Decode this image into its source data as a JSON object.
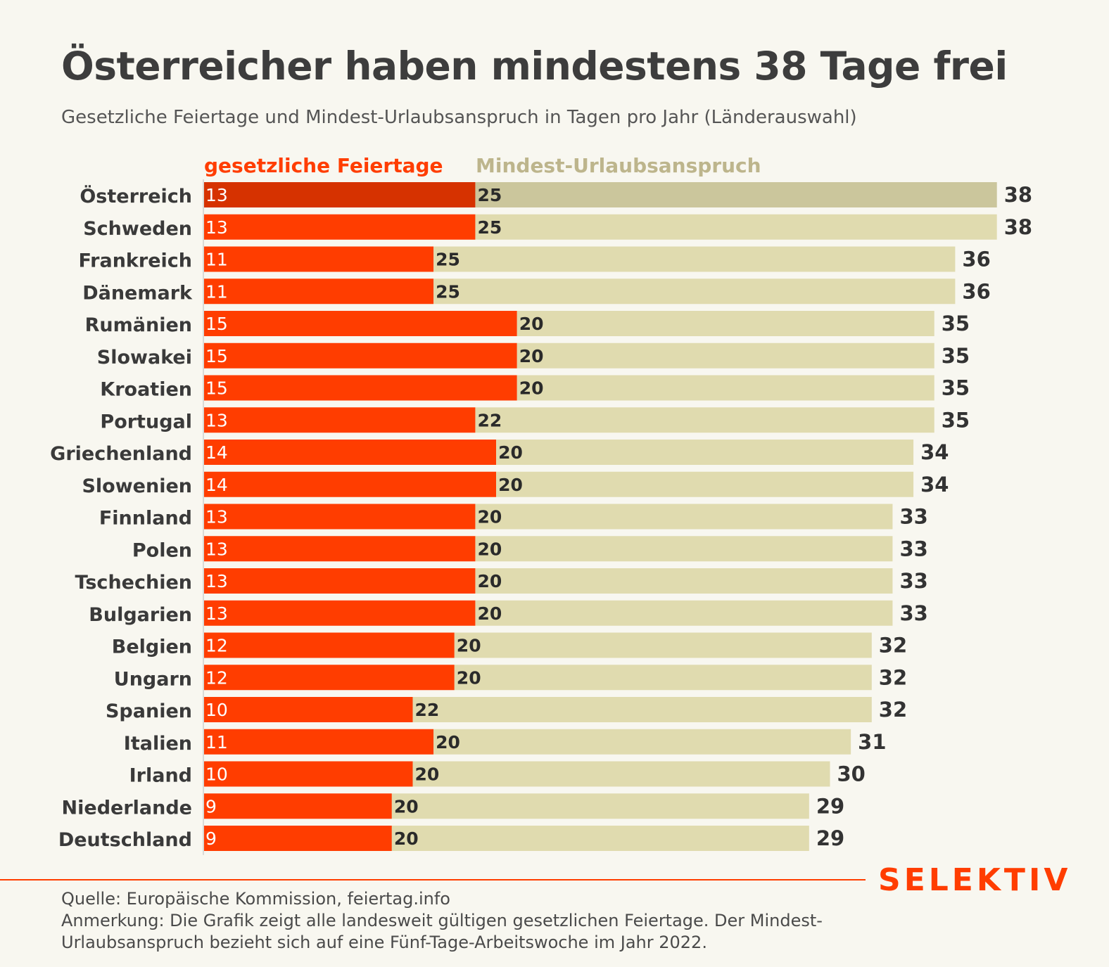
{
  "header": {
    "title": "Österreicher haben mindestens 38 Tage frei",
    "subtitle": "Gesetzliche Feiertage und Mindest-Urlaubsanspruch in Tagen pro Jahr (Länderauswahl)"
  },
  "footer": {
    "source": "Quelle: Europäische Kommission, feiertag.info",
    "note_line1": "Anmerkung: Die Grafik zeigt alle landesweit gültigen gesetzlichen Feiertage. Der Mindest-",
    "note_line2": "Urlaubsanspruch bezieht sich auf eine Fünf-Tage-Arbeitswoche im Jahr 2022."
  },
  "brand": {
    "logo": "SELEKTIV"
  },
  "colors": {
    "holidays": "#ff3d00",
    "holidays_highlight": "#d63200",
    "vacation": "#e0dbaf",
    "vacation_highlight": "#cbc69c",
    "legend_vacation_text": "#bdb58c",
    "text": "#3c3c3c"
  },
  "chart_data": {
    "type": "bar",
    "orientation": "horizontal",
    "stacked": true,
    "categories": [
      "Österreich",
      "Schweden",
      "Frankreich",
      "Dänemark",
      "Rumänien",
      "Slowakei",
      "Kroatien",
      "Portugal",
      "Griechenland",
      "Slowenien",
      "Finnland",
      "Polen",
      "Tschechien",
      "Bulgarien",
      "Belgien",
      "Ungarn",
      "Spanien",
      "Italien",
      "Irland",
      "Niederlande",
      "Deutschland"
    ],
    "series": [
      {
        "name": "gesetzliche Feiertage",
        "values": [
          13,
          13,
          11,
          11,
          15,
          15,
          15,
          13,
          14,
          14,
          13,
          13,
          13,
          13,
          12,
          12,
          10,
          11,
          10,
          9,
          9
        ]
      },
      {
        "name": "Mindest-Urlaubsanspruch",
        "values": [
          25,
          25,
          25,
          25,
          20,
          20,
          20,
          22,
          20,
          20,
          20,
          20,
          20,
          20,
          20,
          20,
          22,
          20,
          20,
          20,
          20
        ]
      }
    ],
    "totals": [
      38,
      38,
      36,
      36,
      35,
      35,
      35,
      35,
      34,
      34,
      33,
      33,
      33,
      33,
      32,
      32,
      32,
      31,
      30,
      29,
      29
    ],
    "highlight_category": "Österreich",
    "xlim": [
      0,
      38
    ],
    "grid": false,
    "legend": "top-left"
  }
}
